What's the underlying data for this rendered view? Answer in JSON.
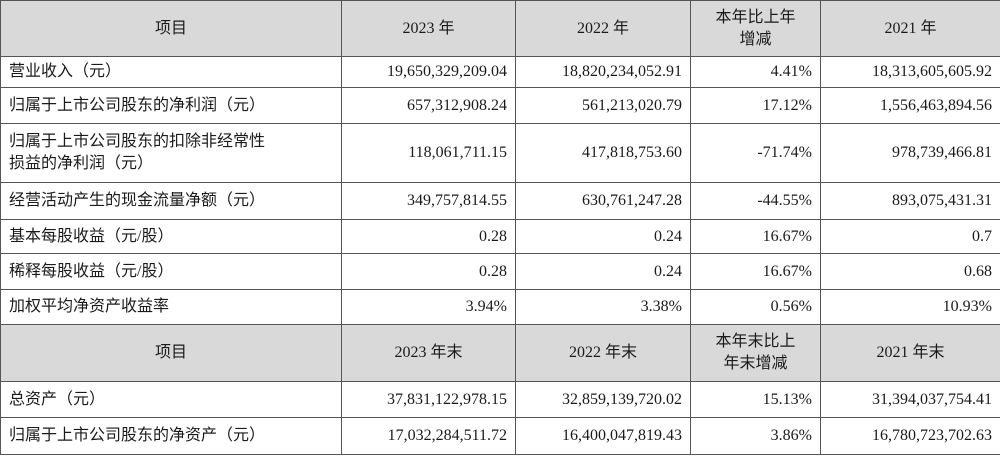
{
  "table": {
    "header": [
      "项目",
      "2023 年",
      "2022 年",
      [
        "本年比上年",
        "增减"
      ],
      "2021 年"
    ],
    "rows": [
      [
        "营业收入（元）",
        "19,650,329,209.04",
        "18,820,234,052.91",
        "4.41%",
        "18,313,605,605.92"
      ],
      [
        "归属于上市公司股东的净利润（元）",
        "657,312,908.24",
        "561,213,020.79",
        "17.12%",
        "1,556,463,894.56"
      ],
      [
        [
          "归属于上市公司股东的扣除非经常性",
          "损益的净利润（元）"
        ],
        "118,061,711.15",
        "417,818,753.60",
        "-71.74%",
        "978,739,466.81"
      ],
      [
        "经营活动产生的现金流量净额（元）",
        "349,757,814.55",
        "630,761,247.28",
        "-44.55%",
        "893,075,431.31"
      ],
      [
        "基本每股收益（元/股）",
        "0.28",
        "0.24",
        "16.67%",
        "0.7"
      ],
      [
        "稀释每股收益（元/股）",
        "0.28",
        "0.24",
        "16.67%",
        "0.68"
      ],
      [
        "加权平均净资产收益率",
        "3.94%",
        "3.38%",
        "0.56%",
        "10.93%"
      ]
    ],
    "header2": [
      "项目",
      "2023 年末",
      "2022 年末",
      [
        "本年末比上",
        "年末增减"
      ],
      "2021 年末"
    ],
    "rows2": [
      [
        "总资产（元）",
        "37,831,122,978.15",
        "32,859,139,720.02",
        "15.13%",
        "31,394,037,754.41"
      ],
      [
        "归属于上市公司股东的净资产（元）",
        "17,032,284,511.72",
        "16,400,047,819.43",
        "3.86%",
        "16,780,723,702.63"
      ]
    ]
  }
}
